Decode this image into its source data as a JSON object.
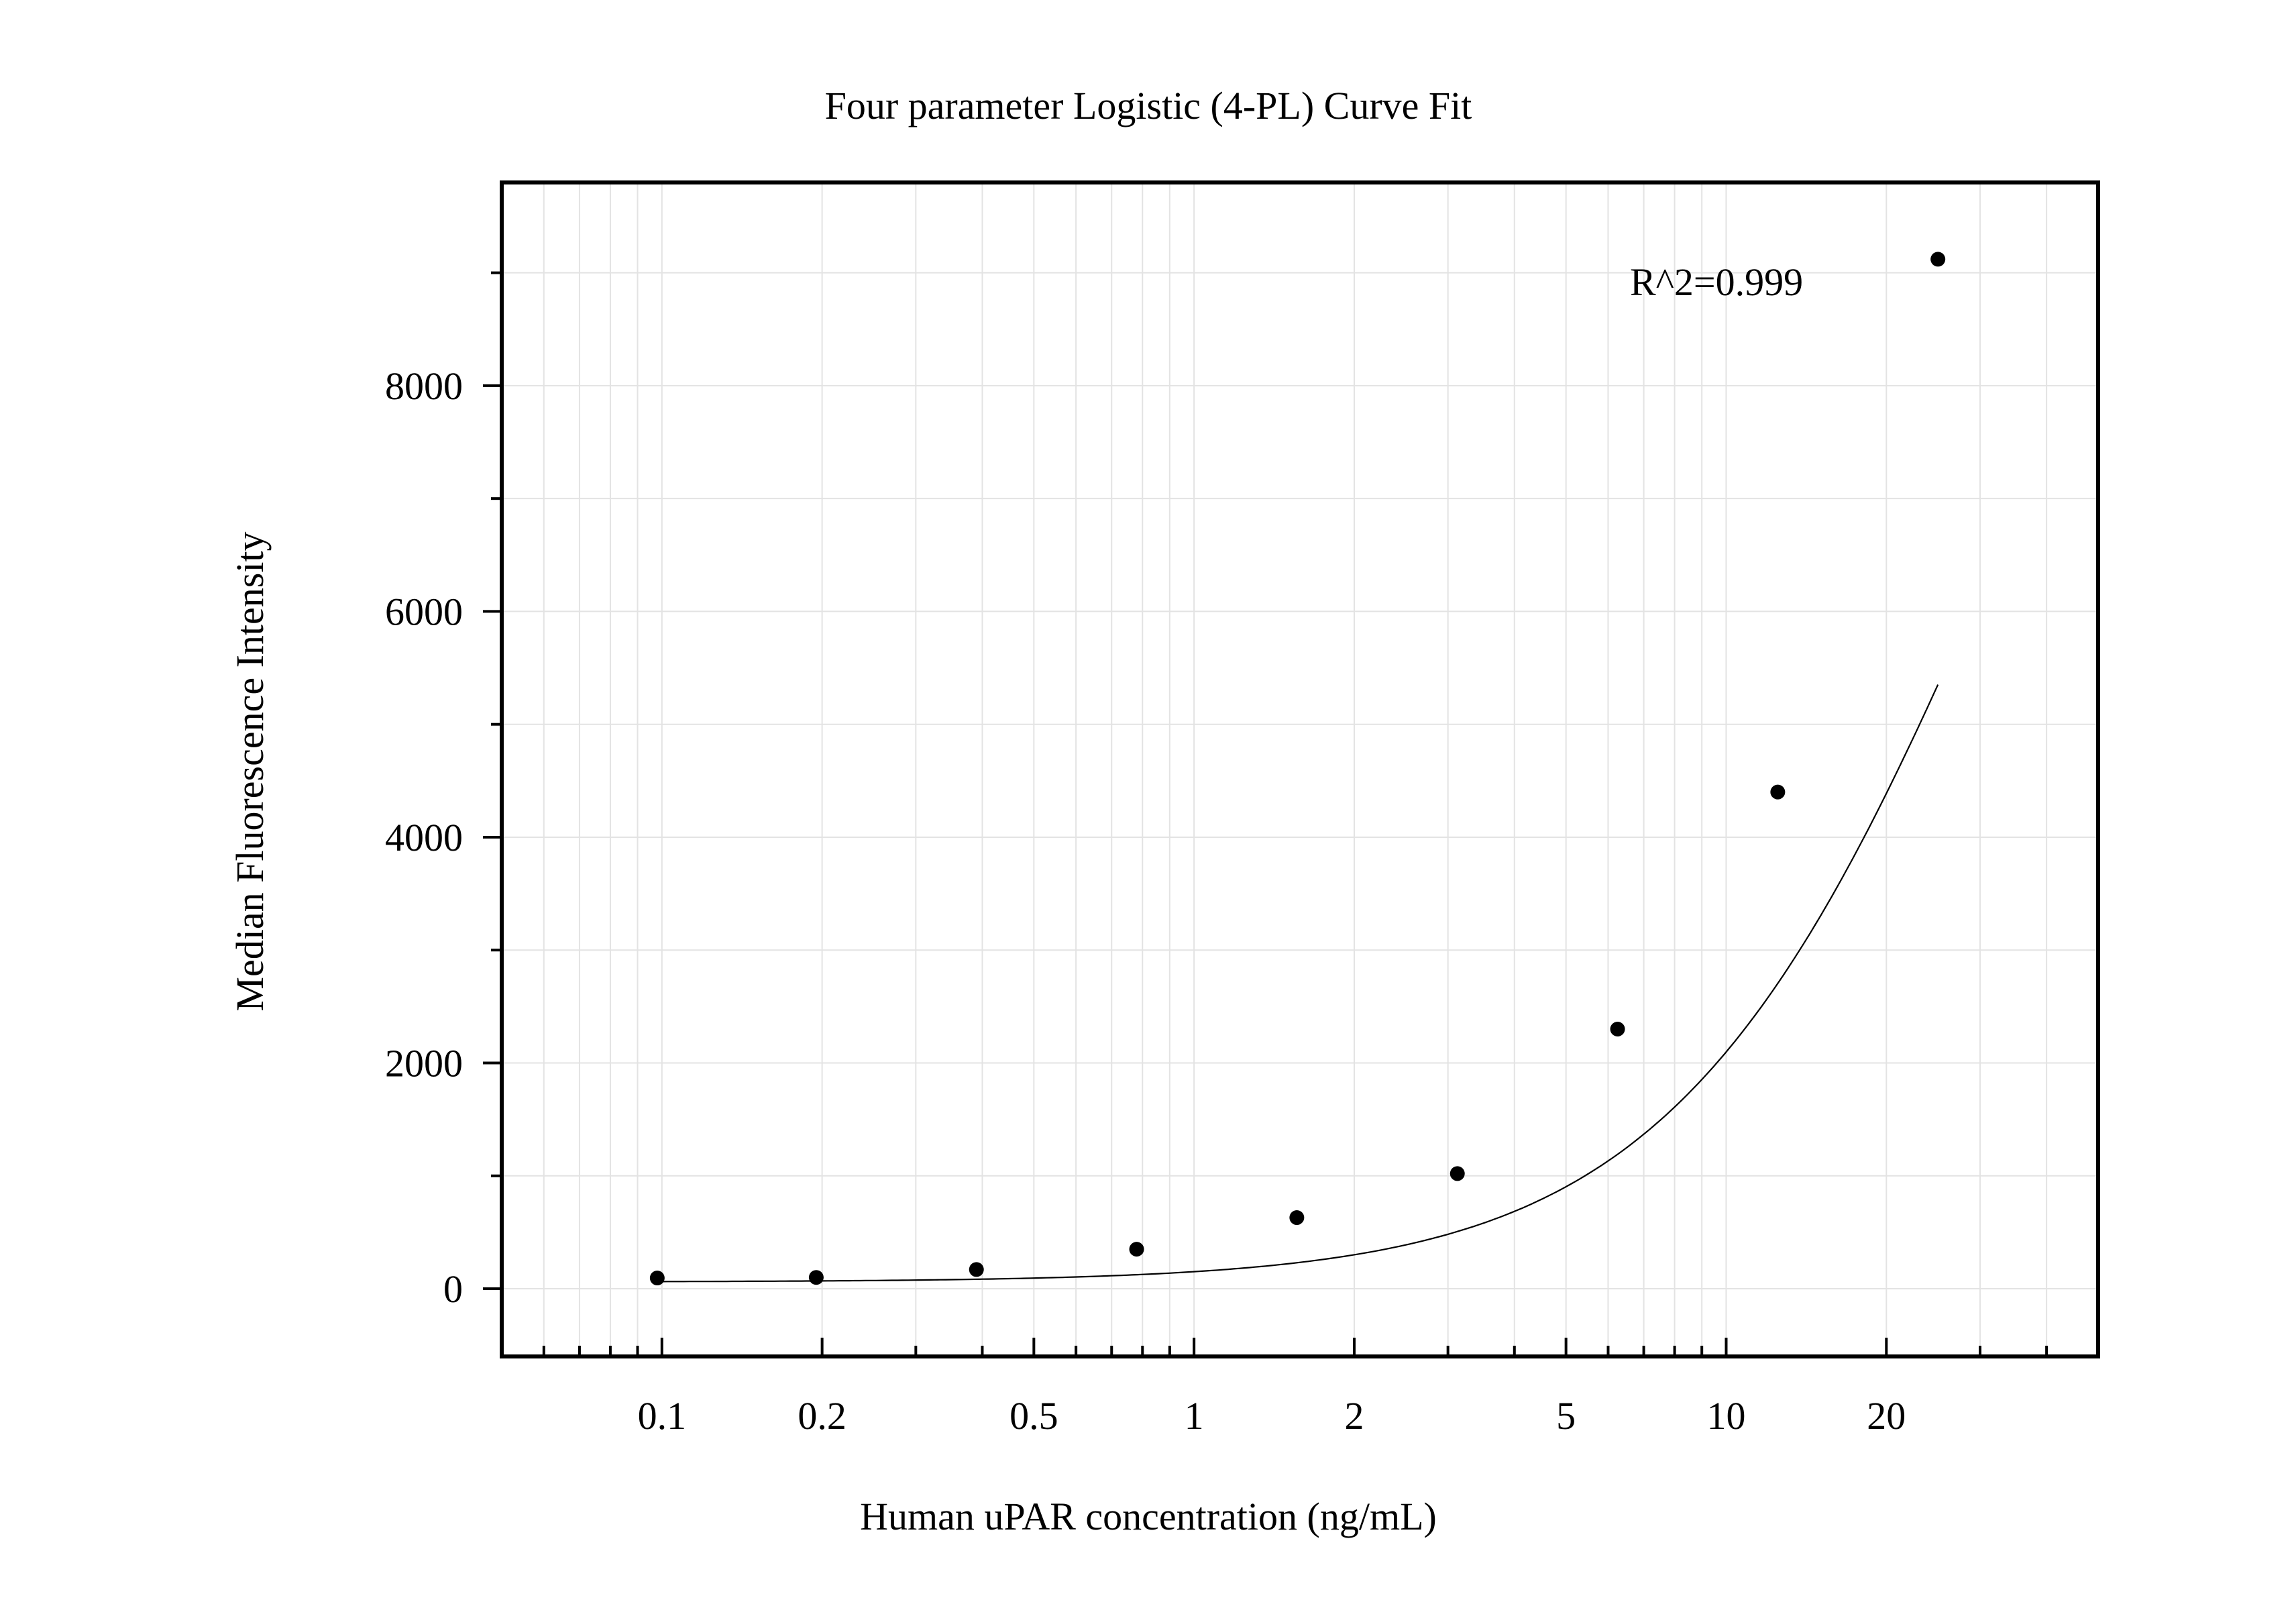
{
  "chart_data": {
    "type": "scatter",
    "title": "Four parameter Logistic (4-PL) Curve Fit",
    "xlabel": "Human uPAR concentration (ng/mL)",
    "ylabel": "Median Fluorescence Intensity",
    "x_scale": "log",
    "xlim": [
      0.05,
      50
    ],
    "ylim": [
      -600,
      9800
    ],
    "x_ticks": [
      0.1,
      0.2,
      0.5,
      1,
      2,
      5,
      10,
      20
    ],
    "x_tick_labels": [
      "0.1",
      "0.2",
      "0.5",
      "1",
      "2",
      "5",
      "10",
      "20"
    ],
    "y_ticks": [
      0,
      2000,
      4000,
      6000,
      8000
    ],
    "y_tick_labels": [
      "0",
      "2000",
      "4000",
      "6000",
      "8000"
    ],
    "grid": true,
    "annotation": "R^2=0.999",
    "points": {
      "x": [
        0.098,
        0.195,
        0.39,
        0.78,
        1.56,
        3.125,
        6.25,
        12.5,
        25
      ],
      "y": [
        95,
        100,
        170,
        350,
        630,
        1020,
        2300,
        4400,
        9120
      ]
    },
    "fit": {
      "model": "4PL",
      "A": 60,
      "B": 1.42,
      "C": 33,
      "D": 13200
    }
  }
}
